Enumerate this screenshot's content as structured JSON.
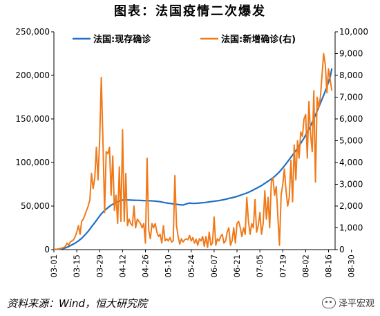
{
  "title": "图表：法国疫情二次爆发",
  "source": "资料来源：Wind，恒大研究院",
  "watermark": "泽平宏观",
  "chart_data": {
    "type": "line",
    "title": "图表：法国疫情二次爆发",
    "x_ticks": [
      "03-01",
      "03-15",
      "03-29",
      "04-12",
      "04-26",
      "05-10",
      "05-24",
      "06-07",
      "06-21",
      "07-05",
      "07-19",
      "08-02",
      "08-16",
      "08-30"
    ],
    "y_left": {
      "range": [
        0,
        250000
      ],
      "ticks": [
        "0",
        "50,000",
        "100,000",
        "150,000",
        "200,000",
        "250,000"
      ]
    },
    "y_right": {
      "range": [
        0,
        10000
      ],
      "ticks": [
        "0",
        "1,000",
        "2,000",
        "3,000",
        "4,000",
        "5,000",
        "6,000",
        "7,000",
        "8,000",
        "9,000",
        "10,000"
      ]
    },
    "legend_placement": "top",
    "series": [
      {
        "name": "法国:现存确诊",
        "axis": "left",
        "color": "#1f6fc5",
        "values": [
          [
            0,
            100
          ],
          [
            3,
            500
          ],
          [
            5,
            1000
          ],
          [
            7,
            2000
          ],
          [
            9,
            3500
          ],
          [
            11,
            5500
          ],
          [
            13,
            7500
          ],
          [
            15,
            10000
          ],
          [
            17,
            13000
          ],
          [
            19,
            17000
          ],
          [
            21,
            21000
          ],
          [
            23,
            26000
          ],
          [
            25,
            31000
          ],
          [
            27,
            36000
          ],
          [
            29,
            41000
          ],
          [
            31,
            45000
          ],
          [
            33,
            48000
          ],
          [
            35,
            51000
          ],
          [
            37,
            53000
          ],
          [
            39,
            55000
          ],
          [
            41,
            56500
          ],
          [
            43,
            57200
          ],
          [
            45,
            57000
          ],
          [
            47,
            56800
          ],
          [
            49,
            56700
          ],
          [
            51,
            56600
          ],
          [
            53,
            56400
          ],
          [
            55,
            56300
          ],
          [
            57,
            56200
          ],
          [
            59,
            56000
          ],
          [
            61,
            55800
          ],
          [
            63,
            55500
          ],
          [
            65,
            55000
          ],
          [
            67,
            54200
          ],
          [
            69,
            53500
          ],
          [
            71,
            53000
          ],
          [
            73,
            52500
          ],
          [
            75,
            52000
          ],
          [
            77,
            51500
          ],
          [
            79,
            51200
          ],
          [
            81,
            52500
          ],
          [
            83,
            53500
          ],
          [
            85,
            53000
          ],
          [
            87,
            53200
          ],
          [
            89,
            53500
          ],
          [
            91,
            53800
          ],
          [
            93,
            54200
          ],
          [
            95,
            54800
          ],
          [
            97,
            55300
          ],
          [
            99,
            55800
          ],
          [
            101,
            56300
          ],
          [
            103,
            57000
          ],
          [
            105,
            57800
          ],
          [
            107,
            58700
          ],
          [
            109,
            59500
          ],
          [
            111,
            60500
          ],
          [
            113,
            61700
          ],
          [
            115,
            63000
          ],
          [
            117,
            64300
          ],
          [
            119,
            65800
          ],
          [
            121,
            67500
          ],
          [
            123,
            69500
          ],
          [
            125,
            71500
          ],
          [
            127,
            73500
          ],
          [
            129,
            76000
          ],
          [
            131,
            78500
          ],
          [
            133,
            81000
          ],
          [
            135,
            84000
          ],
          [
            137,
            87500
          ],
          [
            139,
            91500
          ],
          [
            141,
            96000
          ],
          [
            143,
            101000
          ],
          [
            145,
            106000
          ],
          [
            147,
            111000
          ],
          [
            149,
            116000
          ],
          [
            151,
            122000
          ],
          [
            153,
            128000
          ],
          [
            155,
            135000
          ],
          [
            157,
            142000
          ],
          [
            159,
            150000
          ],
          [
            161,
            159000
          ],
          [
            163,
            168000
          ],
          [
            165,
            177000
          ],
          [
            167,
            187000
          ],
          [
            169,
            198000
          ],
          [
            170,
            208000
          ]
        ]
      },
      {
        "name": "法国:新增确诊(右)",
        "axis": "right",
        "color": "#f07a1a",
        "values": [
          [
            0,
            0
          ],
          [
            2,
            20
          ],
          [
            4,
            50
          ],
          [
            6,
            100
          ],
          [
            7,
            150
          ],
          [
            8,
            300
          ],
          [
            9,
            200
          ],
          [
            10,
            350
          ],
          [
            11,
            400
          ],
          [
            12,
            450
          ],
          [
            13,
            600
          ],
          [
            14,
            800
          ],
          [
            15,
            1100
          ],
          [
            16,
            700
          ],
          [
            17,
            1300
          ],
          [
            18,
            1400
          ],
          [
            19,
            1600
          ],
          [
            20,
            1800
          ],
          [
            21,
            2000
          ],
          [
            22,
            2300
          ],
          [
            23,
            3500
          ],
          [
            24,
            2800
          ],
          [
            25,
            3300
          ],
          [
            26,
            4700
          ],
          [
            27,
            3200
          ],
          [
            28,
            5100
          ],
          [
            29,
            7900
          ],
          [
            30,
            5000
          ],
          [
            31,
            1700
          ],
          [
            32,
            4500
          ],
          [
            33,
            4400
          ],
          [
            34,
            4700
          ],
          [
            35,
            2500
          ],
          [
            36,
            4300
          ],
          [
            37,
            1800
          ],
          [
            38,
            2500
          ],
          [
            39,
            1200
          ],
          [
            40,
            3800
          ],
          [
            41,
            1300
          ],
          [
            42,
            5500
          ],
          [
            43,
            1300
          ],
          [
            44,
            3500
          ],
          [
            45,
            1100
          ],
          [
            46,
            1400
          ],
          [
            47,
            1200
          ],
          [
            48,
            1100
          ],
          [
            49,
            2000
          ],
          [
            50,
            1000
          ],
          [
            51,
            1400
          ],
          [
            52,
            1300
          ],
          [
            53,
            1200
          ],
          [
            54,
            1000
          ],
          [
            55,
            1200
          ],
          [
            56,
            300
          ],
          [
            57,
            4200
          ],
          [
            58,
            900
          ],
          [
            59,
            500
          ],
          [
            60,
            1200
          ],
          [
            61,
            1000
          ],
          [
            62,
            1200
          ],
          [
            63,
            800
          ],
          [
            64,
            600
          ],
          [
            65,
            700
          ],
          [
            66,
            300
          ],
          [
            67,
            1100
          ],
          [
            68,
            400
          ],
          [
            69,
            500
          ],
          [
            70,
            400
          ],
          [
            71,
            550
          ],
          [
            72,
            350
          ],
          [
            73,
            400
          ],
          [
            74,
            3400
          ],
          [
            75,
            1100
          ],
          [
            76,
            600
          ],
          [
            77,
            250
          ],
          [
            78,
            500
          ],
          [
            79,
            350
          ],
          [
            80,
            450
          ],
          [
            81,
            500
          ],
          [
            82,
            450
          ],
          [
            83,
            650
          ],
          [
            84,
            400
          ],
          [
            85,
            550
          ],
          [
            86,
            300
          ],
          [
            87,
            480
          ],
          [
            88,
            200
          ],
          [
            89,
            500
          ],
          [
            90,
            400
          ],
          [
            91,
            600
          ],
          [
            92,
            150
          ],
          [
            93,
            600
          ],
          [
            94,
            100
          ],
          [
            95,
            800
          ],
          [
            96,
            200
          ],
          [
            97,
            300
          ],
          [
            98,
            1500
          ],
          [
            99,
            200
          ],
          [
            100,
            500
          ],
          [
            101,
            400
          ],
          [
            102,
            600
          ],
          [
            103,
            700
          ],
          [
            104,
            300
          ],
          [
            105,
            400
          ],
          [
            106,
            800
          ],
          [
            107,
            1000
          ],
          [
            108,
            200
          ],
          [
            109,
            400
          ],
          [
            110,
            1000
          ],
          [
            111,
            300
          ],
          [
            112,
            1200
          ],
          [
            113,
            1300
          ],
          [
            114,
            1000
          ],
          [
            115,
            600
          ],
          [
            116,
            1000
          ],
          [
            117,
            700
          ],
          [
            118,
            2400
          ],
          [
            119,
            1300
          ],
          [
            120,
            700
          ],
          [
            121,
            1200
          ],
          [
            122,
            1000
          ],
          [
            123,
            2300
          ],
          [
            124,
            800
          ],
          [
            125,
            1100
          ],
          [
            126,
            1700
          ],
          [
            127,
            700
          ],
          [
            128,
            1200
          ],
          [
            129,
            2700
          ],
          [
            130,
            1400
          ],
          [
            131,
            2400
          ],
          [
            132,
            1000
          ],
          [
            133,
            3100
          ],
          [
            134,
            3300
          ],
          [
            135,
            2500
          ],
          [
            136,
            2900
          ],
          [
            137,
            1500
          ],
          [
            138,
            200
          ],
          [
            139,
            2500
          ],
          [
            140,
            3000
          ],
          [
            141,
            3700
          ],
          [
            142,
            2700
          ],
          [
            143,
            2000
          ],
          [
            144,
            2400
          ],
          [
            145,
            4100
          ],
          [
            146,
            2200
          ],
          [
            147,
            4800
          ],
          [
            148,
            3200
          ],
          [
            149,
            5000
          ],
          [
            150,
            4200
          ],
          [
            151,
            5400
          ],
          [
            152,
            5200
          ],
          [
            153,
            6000
          ],
          [
            154,
            6200
          ],
          [
            155,
            4200
          ],
          [
            156,
            6800
          ],
          [
            157,
            5300
          ],
          [
            158,
            4500
          ],
          [
            159,
            7300
          ],
          [
            160,
            3100
          ],
          [
            161,
            7000
          ],
          [
            162,
            6500
          ],
          [
            163,
            7000
          ],
          [
            164,
            8000
          ],
          [
            165,
            9000
          ],
          [
            166,
            8500
          ],
          [
            167,
            7200
          ],
          [
            168,
            8300
          ],
          [
            169,
            7800
          ],
          [
            170,
            7300
          ]
        ]
      }
    ]
  }
}
